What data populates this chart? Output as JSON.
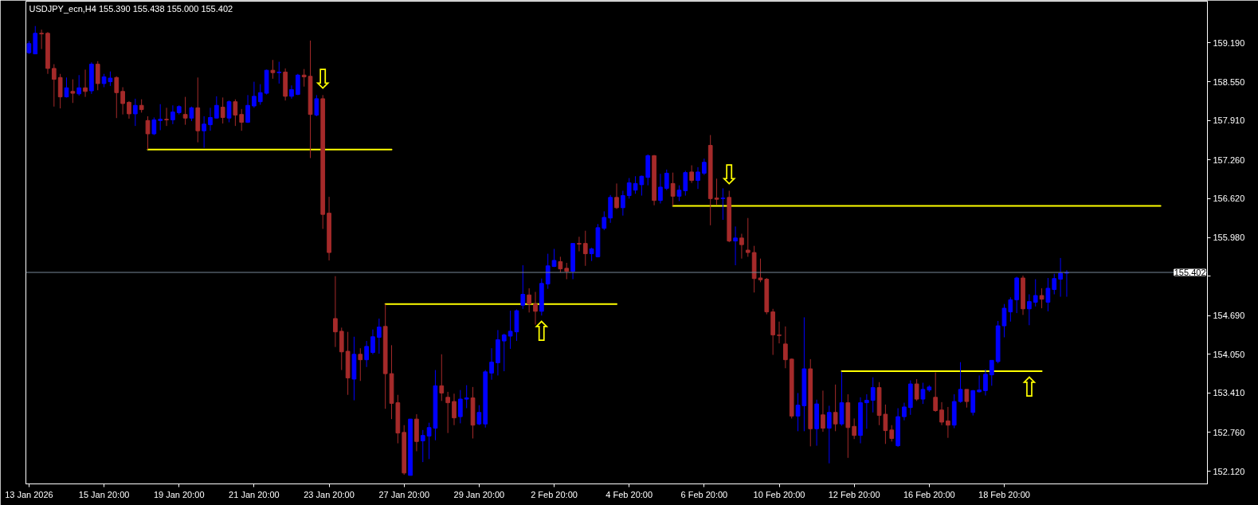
{
  "chart_data": {
    "type": "candlestick",
    "title": "USDJPY_ecn,H4 155.390 155.438 155.000 155.402",
    "categories": [
      "13 Jan 2026",
      null,
      null,
      null,
      null,
      null,
      null,
      null,
      null,
      null,
      null,
      null,
      "15 Jan 20:00",
      null,
      null,
      null,
      null,
      null,
      null,
      null,
      null,
      null,
      null,
      null,
      "19 Jan 20:00",
      null,
      null,
      null,
      null,
      null,
      null,
      null,
      null,
      null,
      null,
      null,
      "21 Jan 20:00",
      null,
      null,
      null,
      null,
      null,
      null,
      null,
      null,
      null,
      null,
      null,
      "23 Jan 20:00",
      null,
      null,
      null,
      null,
      null,
      null,
      null,
      null,
      null,
      null,
      null,
      "27 Jan 20:00",
      null,
      null,
      null,
      null,
      null,
      null,
      null,
      null,
      null,
      null,
      null,
      "29 Jan 20:00",
      null,
      null,
      null,
      null,
      null,
      null,
      null,
      null,
      null,
      null,
      null,
      "2 Feb 20:00",
      null,
      null,
      null,
      null,
      null,
      null,
      null,
      null,
      null,
      null,
      null,
      "4 Feb 20:00",
      null,
      null,
      null,
      null,
      null,
      null,
      null,
      null,
      null,
      null,
      null,
      "6 Feb 20:00",
      null,
      null,
      null,
      null,
      null,
      null,
      null,
      null,
      null,
      null,
      null,
      "10 Feb 20:00",
      null,
      null,
      null,
      null,
      null,
      null,
      null,
      null,
      null,
      null,
      null,
      "12 Feb 20:00",
      null,
      null,
      null,
      null,
      null,
      null,
      null,
      null,
      null,
      null,
      null,
      "16 Feb 20:00",
      null,
      null,
      null,
      null,
      null,
      null,
      null,
      null,
      null,
      null,
      null,
      "18 Feb 20:00",
      null,
      null,
      null,
      null,
      null,
      null,
      null,
      null,
      null,
      null,
      null,
      null,
      null,
      null,
      null,
      null,
      null,
      null,
      null,
      null,
      null,
      null,
      null,
      null,
      null,
      null,
      null,
      null,
      null,
      null,
      null,
      null
    ],
    "ohlc": [
      [
        159.03,
        159.22,
        159.01,
        159.18
      ],
      [
        159.01,
        159.47,
        159.01,
        159.35
      ],
      [
        159.35,
        159.41,
        159.09,
        159.34
      ],
      [
        159.35,
        159.37,
        158.68,
        158.77
      ],
      [
        158.77,
        158.84,
        158.14,
        158.59
      ],
      [
        158.62,
        158.68,
        158.11,
        158.3
      ],
      [
        158.3,
        158.62,
        158.29,
        158.45
      ],
      [
        158.39,
        158.59,
        158.2,
        158.36
      ],
      [
        158.35,
        158.66,
        158.32,
        158.45
      ],
      [
        158.45,
        158.75,
        158.3,
        158.39
      ],
      [
        158.4,
        158.87,
        158.35,
        158.84
      ],
      [
        158.84,
        158.89,
        158.41,
        158.52
      ],
      [
        158.52,
        158.68,
        158.46,
        158.63
      ],
      [
        158.55,
        158.72,
        158.48,
        158.61
      ],
      [
        158.62,
        158.64,
        157.95,
        158.37
      ],
      [
        158.39,
        158.46,
        158.01,
        158.19
      ],
      [
        158.21,
        158.23,
        157.94,
        158.02
      ],
      [
        158.02,
        158.27,
        157.82,
        158.16
      ],
      [
        158.16,
        158.26,
        158.04,
        158.09
      ],
      [
        157.91,
        157.98,
        157.43,
        157.69
      ],
      [
        157.69,
        157.96,
        157.67,
        157.92
      ],
      [
        157.91,
        158.18,
        157.75,
        157.93
      ],
      [
        157.93,
        158.12,
        157.82,
        157.92
      ],
      [
        157.92,
        158.16,
        157.85,
        158.05
      ],
      [
        158.04,
        158.16,
        158.01,
        158.14
      ],
      [
        158.01,
        158.3,
        157.84,
        157.95
      ],
      [
        157.95,
        158.14,
        157.9,
        158.12
      ],
      [
        158.12,
        158.62,
        157.55,
        157.74
      ],
      [
        157.74,
        157.98,
        157.46,
        157.85
      ],
      [
        157.84,
        158.12,
        157.74,
        157.96
      ],
      [
        157.95,
        158.31,
        157.94,
        158.16
      ],
      [
        158.13,
        158.29,
        157.86,
        157.96
      ],
      [
        157.95,
        158.24,
        157.88,
        158.22
      ],
      [
        158.22,
        158.26,
        157.82,
        158.0
      ],
      [
        158.01,
        158.1,
        157.74,
        157.88
      ],
      [
        157.88,
        158.33,
        157.87,
        158.16
      ],
      [
        158.15,
        158.55,
        158.12,
        158.31
      ],
      [
        158.22,
        158.51,
        158.17,
        158.37
      ],
      [
        158.36,
        158.75,
        158.34,
        158.74
      ],
      [
        158.74,
        158.91,
        158.6,
        158.7
      ],
      [
        158.7,
        158.88,
        158.52,
        158.71
      ],
      [
        158.71,
        158.77,
        158.24,
        158.31
      ],
      [
        158.31,
        158.49,
        158.27,
        158.42
      ],
      [
        158.34,
        158.68,
        158.33,
        158.66
      ],
      [
        158.66,
        158.76,
        158.47,
        158.63
      ],
      [
        158.64,
        159.23,
        157.29,
        158.01
      ],
      [
        158.0,
        158.33,
        157.98,
        158.27
      ],
      [
        158.27,
        158.33,
        156.12,
        156.36
      ],
      [
        156.38,
        156.65,
        155.6,
        155.73
      ],
      [
        154.64,
        155.34,
        154.17,
        154.42
      ],
      [
        154.43,
        154.49,
        153.79,
        154.09
      ],
      [
        154.1,
        154.42,
        153.38,
        153.66
      ],
      [
        153.64,
        154.34,
        153.29,
        154.05
      ],
      [
        154.05,
        154.15,
        153.61,
        153.96
      ],
      [
        153.96,
        154.27,
        153.84,
        154.18
      ],
      [
        154.08,
        154.46,
        154.05,
        154.34
      ],
      [
        154.33,
        154.64,
        154.06,
        154.5
      ],
      [
        154.51,
        154.88,
        153.15,
        153.73
      ],
      [
        153.73,
        154.2,
        152.98,
        153.24
      ],
      [
        153.25,
        153.38,
        152.58,
        152.75
      ],
      [
        152.76,
        152.88,
        152.06,
        152.09
      ],
      [
        152.05,
        152.98,
        152.05,
        152.98
      ],
      [
        152.98,
        153.06,
        152.45,
        152.61
      ],
      [
        152.62,
        152.8,
        152.27,
        152.71
      ],
      [
        152.7,
        152.92,
        152.32,
        152.84
      ],
      [
        152.83,
        153.79,
        152.63,
        153.53
      ],
      [
        153.53,
        154.05,
        153.28,
        153.41
      ],
      [
        153.34,
        153.43,
        152.75,
        153.25
      ],
      [
        153.27,
        153.4,
        152.88,
        153.0
      ],
      [
        153.02,
        153.46,
        152.91,
        153.31
      ],
      [
        153.31,
        153.54,
        153.16,
        153.33
      ],
      [
        153.33,
        153.51,
        152.66,
        152.88
      ],
      [
        152.9,
        153.21,
        152.88,
        153.09
      ],
      [
        152.9,
        153.79,
        152.84,
        153.76
      ],
      [
        153.74,
        154.15,
        153.63,
        153.92
      ],
      [
        153.91,
        154.45,
        153.7,
        154.29
      ],
      [
        154.27,
        154.39,
        153.77,
        154.37
      ],
      [
        154.35,
        154.77,
        154.14,
        154.43
      ],
      [
        154.42,
        154.79,
        154.27,
        154.77
      ],
      [
        154.86,
        155.52,
        154.8,
        155.04
      ],
      [
        155.03,
        155.14,
        154.74,
        154.88
      ],
      [
        154.88,
        155.08,
        154.54,
        154.76
      ],
      [
        154.76,
        155.3,
        154.69,
        155.22
      ],
      [
        155.21,
        155.71,
        155.13,
        155.51
      ],
      [
        155.5,
        155.79,
        155.49,
        155.6
      ],
      [
        155.58,
        155.66,
        155.4,
        155.46
      ],
      [
        155.47,
        155.56,
        155.29,
        155.42
      ],
      [
        155.42,
        155.88,
        155.29,
        155.88
      ],
      [
        155.88,
        155.99,
        155.75,
        155.87
      ],
      [
        155.88,
        156.09,
        155.51,
        155.71
      ],
      [
        155.71,
        155.81,
        155.59,
        155.79
      ],
      [
        155.66,
        156.2,
        155.65,
        156.14
      ],
      [
        156.13,
        156.41,
        156.1,
        156.31
      ],
      [
        156.3,
        156.68,
        156.22,
        156.64
      ],
      [
        156.64,
        156.87,
        156.45,
        156.47
      ],
      [
        156.47,
        156.75,
        156.34,
        156.67
      ],
      [
        156.67,
        156.96,
        156.62,
        156.88
      ],
      [
        156.76,
        156.99,
        156.7,
        156.87
      ],
      [
        156.85,
        157.0,
        156.67,
        156.99
      ],
      [
        156.97,
        157.35,
        156.84,
        157.33
      ],
      [
        157.33,
        157.34,
        156.51,
        156.59
      ],
      [
        156.59,
        157.03,
        156.54,
        156.81
      ],
      [
        156.79,
        157.1,
        156.76,
        157.04
      ],
      [
        156.87,
        157.05,
        156.5,
        156.66
      ],
      [
        156.66,
        156.84,
        156.58,
        156.76
      ],
      [
        156.75,
        157.08,
        156.67,
        157.05
      ],
      [
        157.06,
        157.17,
        156.88,
        156.92
      ],
      [
        156.92,
        157.14,
        156.78,
        157.06
      ],
      [
        157.04,
        157.28,
        157.01,
        157.22
      ],
      [
        157.5,
        157.67,
        156.18,
        156.62
      ],
      [
        156.63,
        156.95,
        156.52,
        156.61
      ],
      [
        156.62,
        156.79,
        156.27,
        156.63
      ],
      [
        156.64,
        156.75,
        155.9,
        155.92
      ],
      [
        155.92,
        156.16,
        155.52,
        155.97
      ],
      [
        155.97,
        156.04,
        155.63,
        155.86
      ],
      [
        155.77,
        156.3,
        155.66,
        155.73
      ],
      [
        155.73,
        155.84,
        155.07,
        155.3
      ],
      [
        155.31,
        155.63,
        155.24,
        155.28
      ],
      [
        155.29,
        155.31,
        154.71,
        154.75
      ],
      [
        154.75,
        154.8,
        154.04,
        154.37
      ],
      [
        154.37,
        154.59,
        154.23,
        154.36
      ],
      [
        154.22,
        154.51,
        153.82,
        153.96
      ],
      [
        153.97,
        153.98,
        152.99,
        153.03
      ],
      [
        153.03,
        153.41,
        152.78,
        153.21
      ],
      [
        153.2,
        154.66,
        152.78,
        153.81
      ],
      [
        153.81,
        153.97,
        152.53,
        152.82
      ],
      [
        152.82,
        153.3,
        152.54,
        153.23
      ],
      [
        153.05,
        153.45,
        152.77,
        152.83
      ],
      [
        152.83,
        153.2,
        152.25,
        153.09
      ],
      [
        153.09,
        153.55,
        152.78,
        152.9
      ],
      [
        152.9,
        153.76,
        152.87,
        153.25
      ],
      [
        153.25,
        153.39,
        152.34,
        152.84
      ],
      [
        152.86,
        152.99,
        152.65,
        152.71
      ],
      [
        152.71,
        153.34,
        152.58,
        153.25
      ],
      [
        153.25,
        153.39,
        152.82,
        153.29
      ],
      [
        153.29,
        153.67,
        153.09,
        153.5
      ],
      [
        153.5,
        153.59,
        152.88,
        153.04
      ],
      [
        153.06,
        153.22,
        152.57,
        152.79
      ],
      [
        152.8,
        152.88,
        152.61,
        152.66
      ],
      [
        152.54,
        153.16,
        152.52,
        153.02
      ],
      [
        153.02,
        153.25,
        152.96,
        153.18
      ],
      [
        153.17,
        153.62,
        153.05,
        153.56
      ],
      [
        153.56,
        153.64,
        153.28,
        153.31
      ],
      [
        153.31,
        153.58,
        153.23,
        153.47
      ],
      [
        153.46,
        153.54,
        153.43,
        153.51
      ],
      [
        153.34,
        153.75,
        153.1,
        153.12
      ],
      [
        153.13,
        153.26,
        152.88,
        152.93
      ],
      [
        152.95,
        153.18,
        152.67,
        152.88
      ],
      [
        152.88,
        153.39,
        152.83,
        153.27
      ],
      [
        153.27,
        153.92,
        153.25,
        153.47
      ],
      [
        153.47,
        153.47,
        153.17,
        153.27
      ],
      [
        153.09,
        153.46,
        153.04,
        153.45
      ],
      [
        153.43,
        153.7,
        153.42,
        153.46
      ],
      [
        153.45,
        153.8,
        153.37,
        153.72
      ],
      [
        153.71,
        153.95,
        153.53,
        153.95
      ],
      [
        153.93,
        154.6,
        153.9,
        154.52
      ],
      [
        154.52,
        154.88,
        154.33,
        154.81
      ],
      [
        154.75,
        154.99,
        154.59,
        154.95
      ],
      [
        154.95,
        155.33,
        154.73,
        155.31
      ],
      [
        155.31,
        155.35,
        154.7,
        154.8
      ],
      [
        154.8,
        155.04,
        154.53,
        154.92
      ],
      [
        154.91,
        155.29,
        154.84,
        155.02
      ],
      [
        155.02,
        155.14,
        154.81,
        154.96
      ],
      [
        154.91,
        155.31,
        154.76,
        155.14
      ],
      [
        155.12,
        155.38,
        155.04,
        155.3
      ],
      [
        155.29,
        155.64,
        155.0,
        155.39
      ],
      [
        155.39,
        155.438,
        155.0,
        155.402
      ],
      null,
      null,
      null,
      null,
      null,
      null,
      null,
      null,
      null,
      null,
      null,
      null,
      null,
      null,
      null,
      null,
      null,
      null,
      null,
      null,
      null,
      null
    ],
    "colors": [
      "#0000ff",
      "#0000ff",
      "#a52a2a",
      "#a52a2a",
      "#a52a2a",
      "#a52a2a",
      "#0000ff",
      "#a52a2a",
      "#0000ff",
      "#a52a2a",
      "#0000ff",
      "#a52a2a",
      "#0000ff",
      "#0000ff",
      "#a52a2a",
      "#a52a2a",
      "#a52a2a",
      "#0000ff",
      "#a52a2a",
      "#a52a2a",
      "#0000ff",
      "#0000ff",
      "#a52a2a",
      "#0000ff",
      "#0000ff",
      "#a52a2a",
      "#0000ff",
      "#a52a2a",
      "#0000ff",
      "#0000ff",
      "#0000ff",
      "#a52a2a",
      "#0000ff",
      "#a52a2a",
      "#a52a2a",
      "#0000ff",
      "#0000ff",
      "#0000ff",
      "#0000ff",
      "#a52a2a",
      "#0000ff",
      "#a52a2a",
      "#0000ff",
      "#0000ff",
      "#a52a2a",
      "#a52a2a",
      "#0000ff",
      "#a52a2a",
      "#a52a2a",
      "#a52a2a",
      "#a52a2a",
      "#a52a2a",
      "#0000ff",
      "#a52a2a",
      "#0000ff",
      "#0000ff",
      "#0000ff",
      "#a52a2a",
      "#a52a2a",
      "#a52a2a",
      "#a52a2a",
      "#0000ff",
      "#a52a2a",
      "#0000ff",
      "#0000ff",
      "#0000ff",
      "#a52a2a",
      "#a52a2a",
      "#a52a2a",
      "#0000ff",
      "#0000ff",
      "#a52a2a",
      "#0000ff",
      "#0000ff",
      "#0000ff",
      "#0000ff",
      "#0000ff",
      "#0000ff",
      "#0000ff",
      "#0000ff",
      "#a52a2a",
      "#a52a2a",
      "#0000ff",
      "#0000ff",
      "#0000ff",
      "#a52a2a",
      "#a52a2a",
      "#0000ff",
      "#a52a2a",
      "#a52a2a",
      "#0000ff",
      "#0000ff",
      "#0000ff",
      "#0000ff",
      "#a52a2a",
      "#0000ff",
      "#0000ff",
      "#0000ff",
      "#0000ff",
      "#0000ff",
      "#a52a2a",
      "#0000ff",
      "#0000ff",
      "#a52a2a",
      "#0000ff",
      "#0000ff",
      "#a52a2a",
      "#0000ff",
      "#0000ff",
      "#a52a2a",
      "#a52a2a",
      "#0000ff",
      "#a52a2a",
      "#0000ff",
      "#a52a2a",
      "#a52a2a",
      "#a52a2a",
      "#a52a2a",
      "#a52a2a",
      "#a52a2a",
      "#a52a2a",
      "#a52a2a",
      "#a52a2a",
      "#0000ff",
      "#0000ff",
      "#a52a2a",
      "#0000ff",
      "#a52a2a",
      "#0000ff",
      "#a52a2a",
      "#0000ff",
      "#a52a2a",
      "#a52a2a",
      "#0000ff",
      "#0000ff",
      "#0000ff",
      "#a52a2a",
      "#a52a2a",
      "#a52a2a",
      "#0000ff",
      "#0000ff",
      "#0000ff",
      "#a52a2a",
      "#0000ff",
      "#0000ff",
      "#a52a2a",
      "#a52a2a",
      "#a52a2a",
      "#0000ff",
      "#0000ff",
      "#a52a2a",
      "#0000ff",
      "#0000ff",
      "#0000ff",
      "#0000ff",
      "#0000ff",
      "#0000ff",
      "#0000ff",
      "#0000ff",
      "#a52a2a",
      "#0000ff",
      "#0000ff",
      "#a52a2a",
      "#0000ff",
      "#0000ff",
      "#0000ff",
      "#0000ff",
      null,
      null,
      null,
      null,
      null,
      null,
      null,
      null,
      null,
      null,
      null,
      null,
      null,
      null,
      null,
      null,
      null,
      null,
      null,
      null,
      null,
      null
    ],
    "series": [
      {
        "type": "line",
        "color": "#ffff00",
        "values": [
          null,
          null,
          null,
          null,
          null,
          null,
          null,
          null,
          null,
          null,
          null,
          null,
          null,
          null,
          null,
          null,
          null,
          null,
          null,
          157.43,
          157.43,
          157.43,
          157.43,
          157.43,
          157.43,
          157.43,
          157.43,
          157.43,
          157.43,
          157.43,
          157.43,
          157.43,
          157.43,
          157.43,
          157.43,
          157.43,
          157.43,
          157.43,
          157.43,
          157.43,
          157.43,
          157.43,
          157.43,
          157.43,
          157.43,
          157.43,
          157.43,
          157.43,
          157.43,
          157.43,
          157.43,
          157.43,
          157.43,
          157.43,
          157.43,
          157.43,
          157.43,
          157.43,
          157.43,
          null,
          null,
          null,
          null,
          null,
          null,
          null,
          null,
          null,
          null,
          null,
          null,
          null,
          null,
          null,
          null,
          null,
          null,
          null,
          null,
          null,
          null,
          null,
          null,
          null,
          null,
          null,
          null,
          null,
          null,
          null,
          null,
          null,
          null,
          null,
          null,
          null,
          null,
          null,
          null,
          null,
          null,
          null,
          null,
          null,
          null,
          null,
          null,
          null,
          null,
          null,
          null,
          null,
          null,
          null,
          null,
          null,
          null,
          null,
          null,
          null,
          null,
          null,
          null,
          null,
          null,
          null,
          null,
          null,
          null,
          null,
          null,
          null,
          null,
          null,
          null,
          null,
          null,
          null,
          null,
          null,
          null,
          null,
          null,
          null,
          null,
          null,
          null,
          null,
          null,
          null,
          null,
          null,
          null,
          null,
          null,
          null,
          null,
          null,
          null,
          null,
          null,
          null,
          null,
          null,
          null,
          null,
          null,
          null,
          null,
          null,
          null,
          null,
          null,
          null,
          null,
          null,
          null,
          null,
          null,
          null,
          null,
          null,
          null,
          null,
          null,
          null,
          null,
          null,
          null
        ]
      },
      {
        "type": "line",
        "color": "#ffff00",
        "values": [
          null,
          null,
          null,
          null,
          null,
          null,
          null,
          null,
          null,
          null,
          null,
          null,
          null,
          null,
          null,
          null,
          null,
          null,
          null,
          null,
          null,
          null,
          null,
          null,
          null,
          null,
          null,
          null,
          null,
          null,
          null,
          null,
          null,
          null,
          null,
          null,
          null,
          null,
          null,
          null,
          null,
          null,
          null,
          null,
          null,
          null,
          null,
          null,
          null,
          null,
          null,
          null,
          null,
          null,
          null,
          null,
          null,
          154.88,
          154.88,
          154.88,
          154.88,
          154.88,
          154.88,
          154.88,
          154.88,
          154.88,
          154.88,
          154.88,
          154.88,
          154.88,
          154.88,
          154.88,
          154.88,
          154.88,
          154.88,
          154.88,
          154.88,
          154.88,
          154.88,
          154.88,
          154.88,
          154.88,
          154.88,
          154.88,
          154.88,
          154.88,
          154.88,
          154.88,
          154.88,
          154.88,
          154.88,
          154.88,
          154.88,
          154.88,
          154.88,
          null,
          null,
          null,
          null,
          null,
          null,
          null,
          null,
          null,
          null,
          null,
          null,
          null,
          null,
          null,
          null,
          null,
          null,
          null,
          null,
          null,
          null,
          null,
          null,
          null,
          null,
          null,
          null,
          null,
          null,
          null,
          null,
          null,
          null,
          null,
          null,
          null,
          null,
          null,
          null,
          null,
          null,
          null,
          null,
          null,
          null,
          null,
          null,
          null,
          null,
          null,
          null,
          null,
          null,
          null,
          null,
          null,
          null,
          null,
          null,
          null,
          null,
          null,
          null,
          null,
          null,
          null,
          null,
          null,
          null,
          null,
          null,
          null,
          null,
          null,
          null,
          null,
          null,
          null,
          null,
          null,
          null,
          null,
          null,
          null,
          null,
          null,
          null,
          null,
          null,
          null,
          null,
          null,
          null
        ]
      },
      {
        "type": "line",
        "color": "#ffff00",
        "values": [
          null,
          null,
          null,
          null,
          null,
          null,
          null,
          null,
          null,
          null,
          null,
          null,
          null,
          null,
          null,
          null,
          null,
          null,
          null,
          null,
          null,
          null,
          null,
          null,
          null,
          null,
          null,
          null,
          null,
          null,
          null,
          null,
          null,
          null,
          null,
          null,
          null,
          null,
          null,
          null,
          null,
          null,
          null,
          null,
          null,
          null,
          null,
          null,
          null,
          null,
          null,
          null,
          null,
          null,
          null,
          null,
          null,
          null,
          null,
          null,
          null,
          null,
          null,
          null,
          null,
          null,
          null,
          null,
          null,
          null,
          null,
          null,
          null,
          null,
          null,
          null,
          null,
          null,
          null,
          null,
          null,
          null,
          null,
          null,
          null,
          null,
          null,
          null,
          null,
          null,
          null,
          null,
          null,
          null,
          null,
          null,
          null,
          null,
          null,
          null,
          null,
          null,
          null,
          156.5,
          156.5,
          156.5,
          156.5,
          156.5,
          156.5,
          156.5,
          156.5,
          156.5,
          156.5,
          156.5,
          156.5,
          156.5,
          156.5,
          156.5,
          156.5,
          156.5,
          156.5,
          156.5,
          156.5,
          156.5,
          156.5,
          156.5,
          156.5,
          156.5,
          156.5,
          156.5,
          156.5,
          156.5,
          156.5,
          156.5,
          156.5,
          156.5,
          156.5,
          156.5,
          156.5,
          156.5,
          156.5,
          156.5,
          156.5,
          156.5,
          156.5,
          156.5,
          156.5,
          156.5,
          156.5,
          156.5,
          156.5,
          156.5,
          156.5,
          156.5,
          156.5,
          156.5,
          156.5,
          156.5,
          156.5,
          156.5,
          156.5,
          156.5,
          156.5,
          156.5,
          156.5,
          156.5,
          156.5,
          156.5,
          156.5,
          156.5,
          156.5,
          156.5,
          156.5,
          156.5,
          156.5,
          156.5,
          156.5,
          156.5,
          156.5,
          156.5,
          156.5,
          156.5,
          null,
          null,
          null,
          null,
          null,
          null,
          null
        ]
      },
      {
        "type": "line",
        "color": "#ffff00",
        "values": [
          null,
          null,
          null,
          null,
          null,
          null,
          null,
          null,
          null,
          null,
          null,
          null,
          null,
          null,
          null,
          null,
          null,
          null,
          null,
          null,
          null,
          null,
          null,
          null,
          null,
          null,
          null,
          null,
          null,
          null,
          null,
          null,
          null,
          null,
          null,
          null,
          null,
          null,
          null,
          null,
          null,
          null,
          null,
          null,
          null,
          null,
          null,
          null,
          null,
          null,
          null,
          null,
          null,
          null,
          null,
          null,
          null,
          null,
          null,
          null,
          null,
          null,
          null,
          null,
          null,
          null,
          null,
          null,
          null,
          null,
          null,
          null,
          null,
          null,
          null,
          null,
          null,
          null,
          null,
          null,
          null,
          null,
          null,
          null,
          null,
          null,
          null,
          null,
          null,
          null,
          null,
          null,
          null,
          null,
          null,
          null,
          null,
          null,
          null,
          null,
          null,
          null,
          null,
          null,
          null,
          null,
          null,
          null,
          null,
          null,
          null,
          null,
          null,
          null,
          null,
          null,
          null,
          null,
          null,
          null,
          null,
          null,
          null,
          null,
          null,
          null,
          null,
          null,
          null,
          null,
          153.77,
          153.77,
          153.77,
          153.77,
          153.77,
          153.77,
          153.77,
          153.77,
          153.77,
          153.77,
          153.77,
          153.77,
          153.77,
          153.77,
          153.77,
          153.77,
          153.77,
          153.77,
          153.77,
          153.77,
          153.77,
          153.77,
          153.77,
          153.77,
          153.77,
          153.77,
          153.77,
          153.77,
          153.77,
          153.77,
          153.77,
          153.77,
          153.77,
          null,
          null,
          null,
          null,
          null,
          null,
          null,
          null,
          null,
          null,
          null,
          null,
          null,
          null,
          null,
          null,
          null,
          null,
          null,
          null,
          null,
          null,
          null,
          null,
          null,
          null
        ]
      }
    ],
    "ref_lines": [
      {
        "axis": "y",
        "value": 155.402,
        "label": "155.402",
        "color": "#778899"
      }
    ],
    "annotations": [
      "⇩",
      "⇧",
      "⇩",
      "⇧"
    ],
    "ylim": [
      151.91,
      159.88
    ],
    "yticks": [
      {
        "value": 152.12,
        "label": "152.120"
      },
      {
        "value": 152.76,
        "label": "152.760"
      },
      {
        "value": 153.41,
        "label": "153.410"
      },
      {
        "value": 154.05,
        "label": "154.050"
      },
      {
        "value": 154.69,
        "label": "154.690"
      },
      {
        "value": 155.34,
        "label": null
      },
      {
        "value": 155.98,
        "label": "155.980"
      },
      {
        "value": 156.62,
        "label": "156.620"
      },
      {
        "value": 157.26,
        "label": "157.260"
      },
      {
        "value": 157.91,
        "label": "157.910"
      },
      {
        "value": 158.55,
        "label": "158.550"
      },
      {
        "value": 159.19,
        "label": "159.190"
      }
    ]
  }
}
